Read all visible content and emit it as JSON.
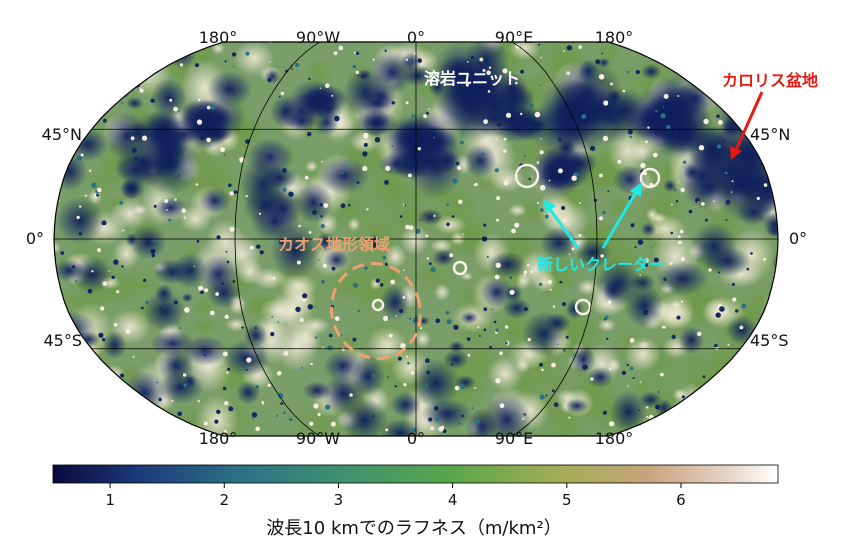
{
  "map": {
    "projection": "Robinson",
    "top_lon_labels": [
      "180°",
      "90°W",
      "0°",
      "90°E",
      "180°"
    ],
    "bottom_lon_labels": [
      "180°",
      "90°W",
      "0°",
      "90°E",
      "180°"
    ],
    "left_lat_labels": [
      "45°N",
      "0°",
      "45°S"
    ],
    "right_lat_labels": [
      "45°N",
      "0°",
      "45°S"
    ]
  },
  "annotations": {
    "lava_units": "溶岩ユニット",
    "caloris_basin": "カロリス盆地",
    "chaos_terrain": "カオス地形領域",
    "new_craters": "新しいクレーター"
  },
  "colorbar": {
    "ticks": [
      "1",
      "2",
      "3",
      "4",
      "5",
      "6"
    ],
    "range": [
      0.5,
      6.85
    ],
    "title": "波長10 kmでのラフネス（m/km²）",
    "colors": [
      "#0a0a3c",
      "#1c3a7a",
      "#2c6f86",
      "#3f9170",
      "#5aa64a",
      "#a3ad55",
      "#c6a47c",
      "#e8d3c6",
      "#ffffff"
    ]
  },
  "colors": {
    "caloris": "#e8190f",
    "chaos": "#f0a070",
    "new_craters": "#1fe8e8",
    "lava": "#ffffff"
  }
}
